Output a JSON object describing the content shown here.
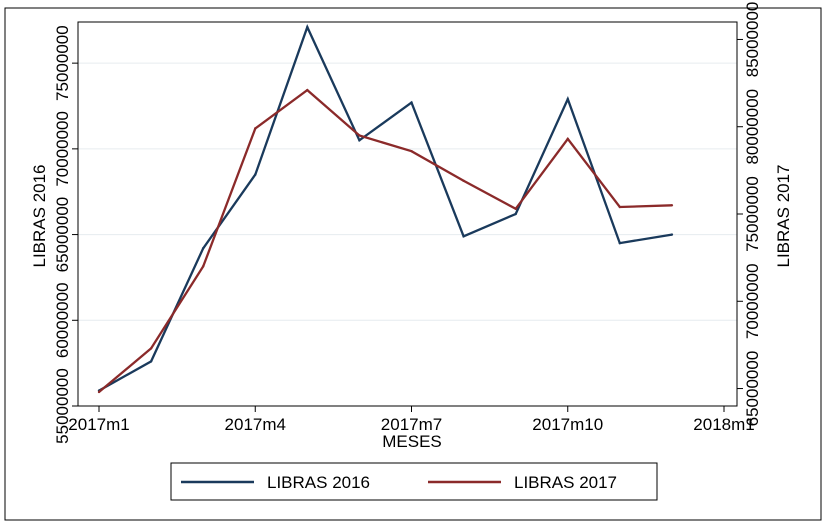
{
  "chart_data": {
    "type": "line",
    "title": "",
    "xlabel": "MESES",
    "ylabel_left": "LIBRAS 2016",
    "ylabel_right": "LIBRAS 2017",
    "x": [
      "2017m1",
      "2017m2",
      "2017m3",
      "2017m4",
      "2017m5",
      "2017m6",
      "2017m7",
      "2017m8",
      "2017m9",
      "2017m10",
      "2017m11",
      "2017m12"
    ],
    "x_ticks": [
      {
        "label": "2017m1",
        "index": 0
      },
      {
        "label": "2017m4",
        "index": 3
      },
      {
        "label": "2017m7",
        "index": 6
      },
      {
        "label": "2017m10",
        "index": 9
      },
      {
        "label": "2018m1",
        "index": 12
      }
    ],
    "xlim": [
      0,
      12
    ],
    "y_left": {
      "ticks": [
        55000000,
        60000000,
        65000000,
        70000000,
        75000000
      ],
      "tick_labels": [
        "55000000",
        "60000000",
        "65000000",
        "70000000",
        "75000000"
      ],
      "ylim": [
        55000000,
        77400000
      ]
    },
    "y_right": {
      "ticks": [
        65000000,
        70000000,
        75000000,
        80000000,
        85000000
      ],
      "tick_labels": [
        "65000000",
        "70000000",
        "75000000",
        "80000000",
        "85000000"
      ],
      "ylim": [
        64000000,
        86000000
      ]
    },
    "grid": true,
    "legend_position": "bottom",
    "series": [
      {
        "name": "LIBRAS 2016",
        "axis": "left",
        "color": "#1a3a5c",
        "values": [
          55900000,
          57600000,
          64200000,
          68500000,
          77100000,
          70500000,
          72700000,
          64900000,
          66200000,
          72900000,
          64500000,
          65000000
        ]
      },
      {
        "name": "LIBRAS 2017",
        "axis": "right",
        "color": "#8b2a2a",
        "values": [
          64800000,
          67300000,
          72000000,
          79900000,
          82100000,
          79500000,
          78600000,
          76900000,
          75300000,
          79300000,
          75400000,
          75500000
        ]
      }
    ]
  }
}
